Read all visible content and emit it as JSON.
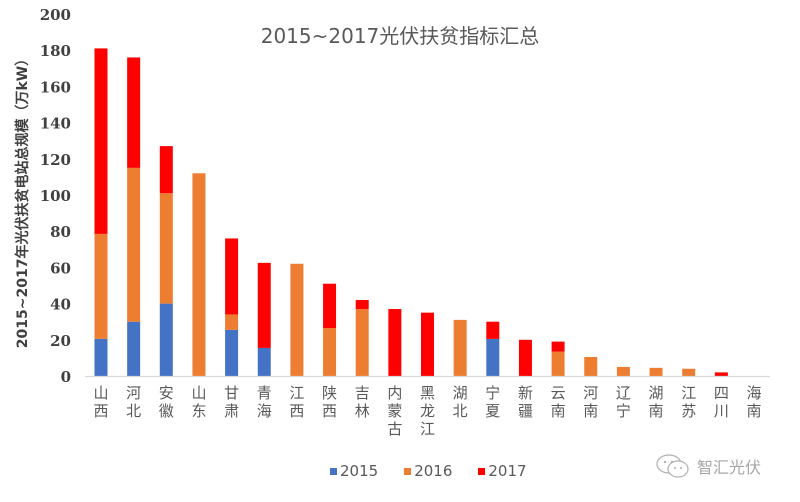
{
  "chart_data": {
    "type": "bar",
    "stacked": true,
    "title": "2015~2017光伏扶贫指标汇总",
    "xlabel": "",
    "ylabel": "2015~2017年光伏扶贫电站总规模（万kW）",
    "ylim": [
      0,
      200
    ],
    "yticks": [
      0,
      20,
      40,
      60,
      80,
      100,
      120,
      140,
      160,
      180,
      200
    ],
    "grid": false,
    "legend_position": "bottom",
    "categories": [
      "山西",
      "河北",
      "安徽",
      "山东",
      "甘肃",
      "青海",
      "江西",
      "陕西",
      "吉林",
      "内蒙古",
      "黑龙江",
      "湖北",
      "宁夏",
      "新疆",
      "云南",
      "河南",
      "辽宁",
      "湖南",
      "江苏",
      "四川",
      "海南"
    ],
    "series": [
      {
        "name": "2015",
        "color": "#4472C4",
        "values": [
          20.5,
          30,
          40,
          0,
          25.5,
          15.5,
          0,
          0,
          0,
          0,
          0,
          0,
          20.5,
          0,
          0,
          0,
          0,
          0,
          0,
          0,
          0
        ]
      },
      {
        "name": "2016",
        "color": "#ED7D31",
        "values": [
          58,
          85,
          61,
          112,
          8.5,
          0,
          62,
          26.5,
          37,
          0,
          0,
          31,
          0,
          0,
          13.5,
          10.5,
          5,
          4.5,
          4,
          0,
          0
        ]
      },
      {
        "name": "2017",
        "color": "#FF0000",
        "values": [
          102.5,
          61,
          26,
          0,
          42,
          47,
          0,
          24.5,
          5,
          37,
          35,
          0,
          9.5,
          20,
          5.5,
          0,
          0,
          0,
          0,
          2,
          0
        ]
      }
    ]
  },
  "watermark": {
    "icon": "wechat-icon",
    "text": "智汇光伏"
  }
}
